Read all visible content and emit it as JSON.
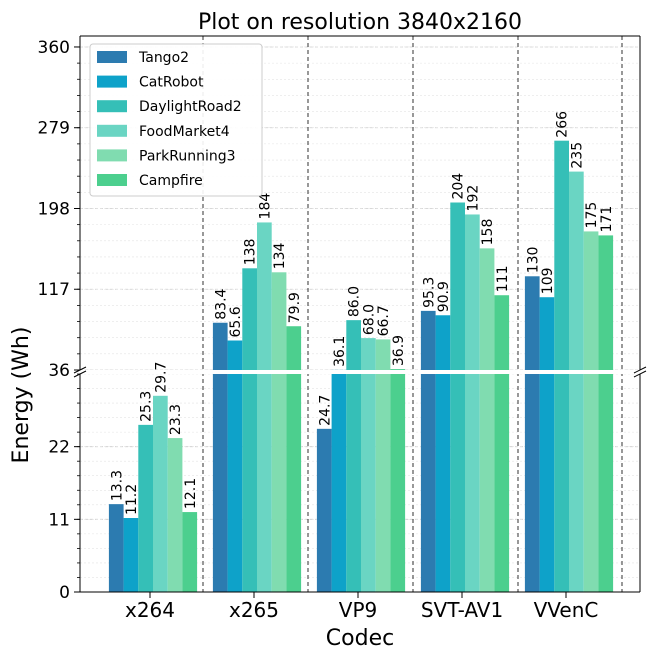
{
  "chart_data": {
    "type": "bar",
    "title": "Plot on resolution 3840x2160",
    "xlabel": "Codec",
    "ylabel": "Energy (Wh)",
    "categories": [
      "x264",
      "x265",
      "VP9",
      "SVT-AV1",
      "VVenC"
    ],
    "broken_axis": {
      "lower_range": [
        0,
        33
      ],
      "upper_range": [
        36,
        370
      ],
      "lower_ticks": [
        "0",
        "11",
        "22"
      ],
      "upper_ticks": [
        "36",
        "117",
        "198",
        "279",
        "360"
      ]
    },
    "series": [
      {
        "name": "Tango2",
        "color": "#2c7bb0",
        "values": [
          13.3,
          83.4,
          24.7,
          95.3,
          130
        ],
        "labels": [
          "13.3",
          "83.4",
          "24.7",
          "95.3",
          "130"
        ]
      },
      {
        "name": "CatRobot",
        "color": "#0ea2c9",
        "values": [
          11.2,
          65.6,
          36.1,
          90.9,
          109
        ],
        "labels": [
          "11.2",
          "65.6",
          "36.1",
          "90.9",
          "109"
        ]
      },
      {
        "name": "DaylightRoad2",
        "color": "#35bfb7",
        "values": [
          25.3,
          138,
          86.0,
          204,
          266
        ],
        "labels": [
          "25.3",
          "138",
          "86.0",
          "204",
          "266"
        ]
      },
      {
        "name": "FoodMarket4",
        "color": "#6ad5c3",
        "values": [
          29.7,
          184,
          68.0,
          192,
          235
        ],
        "labels": [
          "29.7",
          "184",
          "68.0",
          "192",
          "235"
        ]
      },
      {
        "name": "ParkRunning3",
        "color": "#80dcb0",
        "values": [
          23.3,
          134,
          66.7,
          158,
          175
        ],
        "labels": [
          "23.3",
          "134",
          "66.7",
          "158",
          "175"
        ]
      },
      {
        "name": "Campfire",
        "color": "#4ccf8e",
        "values": [
          12.1,
          79.9,
          36.9,
          111,
          171
        ],
        "labels": [
          "12.1",
          "79.9",
          "36.9",
          "111",
          "171"
        ]
      }
    ],
    "legend_position": "top-left",
    "grid": true
  }
}
